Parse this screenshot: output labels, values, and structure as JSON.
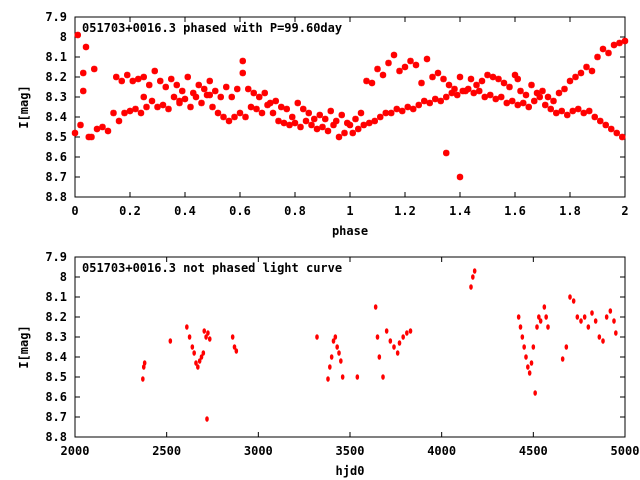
{
  "chart_data": [
    {
      "type": "scatter",
      "title": "051703+0016.3 phased with P=99.60day",
      "xlabel": "phase",
      "ylabel": "I[mag]",
      "xlim": [
        0,
        2
      ],
      "ylim": [
        8.8,
        7.9
      ],
      "y_inverted": true,
      "x_ticks": [
        "0",
        "0.2",
        "0.4",
        "0.6",
        "0.8",
        "1",
        "1.2",
        "1.4",
        "1.6",
        "1.8",
        "2"
      ],
      "y_ticks": [
        "7.9",
        "8",
        "8.1",
        "8.2",
        "8.3",
        "8.4",
        "8.5",
        "8.6",
        "8.7",
        "8.8"
      ],
      "marker": "star",
      "marker_color": "#ff0000",
      "series": [
        {
          "x": [
            0.0,
            0.02,
            0.03,
            0.05,
            0.06,
            0.08,
            0.1,
            0.12,
            0.14,
            0.16,
            0.18,
            0.2,
            0.22,
            0.24,
            0.26,
            0.28,
            0.3,
            0.32,
            0.34,
            0.36,
            0.38,
            0.4,
            0.42,
            0.44,
            0.46,
            0.48,
            0.5,
            0.52,
            0.54,
            0.56,
            0.58,
            0.6,
            0.62,
            0.64,
            0.66,
            0.68,
            0.7,
            0.72,
            0.74,
            0.76,
            0.78,
            0.8,
            0.82,
            0.84,
            0.86,
            0.88,
            0.9,
            0.92,
            0.94,
            0.96,
            0.98,
            0.01,
            0.03,
            0.04,
            0.07,
            0.15,
            0.17,
            0.19,
            0.21,
            0.23,
            0.25,
            0.27,
            0.29,
            0.31,
            0.33,
            0.35,
            0.37,
            0.39,
            0.41,
            0.43,
            0.45,
            0.47,
            0.49,
            0.51,
            0.53,
            0.55,
            0.57,
            0.59,
            0.61,
            0.63,
            0.65,
            0.67,
            0.69,
            0.71,
            0.73,
            0.75,
            0.77,
            0.79,
            0.81,
            0.83,
            0.85,
            0.87,
            0.89,
            0.91,
            0.93,
            0.95,
            0.97,
            0.99,
            0.61,
            0.25,
            0.38,
            0.49
          ],
          "y": [
            8.48,
            8.44,
            8.27,
            8.5,
            8.5,
            8.46,
            8.45,
            8.47,
            8.38,
            8.42,
            8.38,
            8.37,
            8.36,
            8.38,
            8.35,
            8.32,
            8.35,
            8.34,
            8.36,
            8.3,
            8.33,
            8.31,
            8.35,
            8.3,
            8.33,
            8.29,
            8.35,
            8.38,
            8.4,
            8.42,
            8.4,
            8.38,
            8.4,
            8.35,
            8.36,
            8.38,
            8.34,
            8.38,
            8.42,
            8.43,
            8.44,
            8.43,
            8.45,
            8.42,
            8.44,
            8.46,
            8.45,
            8.47,
            8.44,
            8.5,
            8.48,
            7.99,
            8.18,
            8.05,
            8.16,
            8.2,
            8.22,
            8.19,
            8.22,
            8.21,
            8.2,
            8.24,
            8.17,
            8.22,
            8.25,
            8.21,
            8.24,
            8.27,
            8.2,
            8.28,
            8.24,
            8.26,
            8.29,
            8.27,
            8.3,
            8.25,
            8.3,
            8.26,
            8.18,
            8.26,
            8.28,
            8.3,
            8.28,
            8.33,
            8.32,
            8.35,
            8.36,
            8.4,
            8.33,
            8.36,
            8.38,
            8.41,
            8.39,
            8.41,
            8.37,
            8.42,
            8.39,
            8.43,
            8.12,
            8.3,
            8.32,
            8.22
          ]
        },
        {
          "x": [
            1.0,
            1.02,
            1.04,
            1.06,
            1.08,
            1.1,
            1.12,
            1.14,
            1.16,
            1.18,
            1.2,
            1.22,
            1.24,
            1.26,
            1.28,
            1.3,
            1.32,
            1.34,
            1.36,
            1.38,
            1.4,
            1.42,
            1.44,
            1.46,
            1.48,
            1.5,
            1.52,
            1.54,
            1.56,
            1.58,
            1.6,
            1.62,
            1.64,
            1.66,
            1.68,
            1.7,
            1.72,
            1.74,
            1.76,
            1.78,
            1.8,
            1.82,
            1.84,
            1.86,
            1.88,
            1.9,
            1.92,
            1.94,
            1.96,
            1.98,
            2.0,
            1.01,
            1.03,
            1.05,
            1.07,
            1.09,
            1.11,
            1.13,
            1.15,
            1.17,
            1.19,
            1.21,
            1.23,
            1.25,
            1.27,
            1.29,
            1.31,
            1.33,
            1.35,
            1.37,
            1.39,
            1.41,
            1.43,
            1.45,
            1.47,
            1.49,
            1.51,
            1.53,
            1.55,
            1.57,
            1.59,
            1.61,
            1.63,
            1.65,
            1.67,
            1.69,
            1.71,
            1.73,
            1.75,
            1.77,
            1.79,
            1.81,
            1.83,
            1.85,
            1.87,
            1.89,
            1.91,
            1.93,
            1.95,
            1.97,
            1.99,
            1.35,
            1.4,
            1.61
          ],
          "y": [
            8.44,
            8.41,
            8.38,
            8.22,
            8.23,
            8.16,
            8.19,
            8.13,
            8.09,
            8.17,
            8.15,
            8.12,
            8.14,
            8.23,
            8.11,
            8.2,
            8.18,
            8.21,
            8.24,
            8.26,
            8.2,
            8.27,
            8.21,
            8.24,
            8.22,
            8.19,
            8.2,
            8.21,
            8.23,
            8.25,
            8.19,
            8.27,
            8.29,
            8.24,
            8.28,
            8.27,
            8.3,
            8.32,
            8.28,
            8.26,
            8.22,
            8.2,
            8.18,
            8.15,
            8.17,
            8.1,
            8.06,
            8.08,
            8.04,
            8.03,
            8.02,
            8.48,
            8.46,
            8.44,
            8.43,
            8.42,
            8.4,
            8.38,
            8.38,
            8.36,
            8.37,
            8.35,
            8.36,
            8.34,
            8.32,
            8.33,
            8.31,
            8.32,
            8.3,
            8.28,
            8.29,
            8.27,
            8.26,
            8.28,
            8.27,
            8.3,
            8.29,
            8.31,
            8.3,
            8.33,
            8.32,
            8.34,
            8.33,
            8.35,
            8.32,
            8.3,
            8.34,
            8.36,
            8.38,
            8.37,
            8.39,
            8.37,
            8.36,
            8.38,
            8.37,
            8.4,
            8.42,
            8.44,
            8.46,
            8.48,
            8.5,
            8.58,
            8.7,
            8.21
          ]
        }
      ]
    },
    {
      "type": "scatter",
      "title": "051703+0016.3 not phased light curve",
      "xlabel": "hjd0",
      "ylabel": "I[mag]",
      "xlim": [
        2000,
        5000
      ],
      "ylim": [
        8.8,
        7.9
      ],
      "y_inverted": true,
      "x_ticks": [
        "2000",
        "2500",
        "3000",
        "3500",
        "4000",
        "4500",
        "5000"
      ],
      "y_ticks": [
        "7.9",
        "8",
        "8.1",
        "8.2",
        "8.3",
        "8.4",
        "8.5",
        "8.6",
        "8.7",
        "8.8"
      ],
      "marker": "diamond",
      "marker_color": "#ff0000",
      "series": [
        {
          "x": [
            2370,
            2375,
            2380,
            2520,
            2610,
            2625,
            2640,
            2650,
            2660,
            2670,
            2680,
            2690,
            2700,
            2705,
            2715,
            2725,
            2735,
            2860,
            2870,
            2880,
            3320,
            3380,
            3390,
            3400,
            3410,
            3420,
            3430,
            3440,
            3450,
            3460,
            3540,
            3640,
            3650,
            3660,
            3680,
            3700,
            3720,
            3740,
            3760,
            3770,
            3790,
            3810,
            3830,
            4160,
            4170,
            4180,
            4420,
            4430,
            4440,
            4450,
            4460,
            4470,
            4480,
            4490,
            4500,
            4520,
            4530,
            4540,
            4560,
            4570,
            4580,
            4660,
            4680,
            4700,
            4720,
            4740,
            4760,
            4780,
            4800,
            4820,
            4840,
            4860,
            4880,
            4900,
            4920,
            4940,
            4950,
            2720,
            4510
          ],
          "y": [
            8.51,
            8.45,
            8.43,
            8.32,
            8.25,
            8.3,
            8.35,
            8.38,
            8.43,
            8.45,
            8.42,
            8.4,
            8.38,
            8.27,
            8.3,
            8.28,
            8.31,
            8.3,
            8.35,
            8.37,
            8.3,
            8.51,
            8.45,
            8.4,
            8.32,
            8.3,
            8.35,
            8.38,
            8.42,
            8.5,
            8.5,
            8.15,
            8.3,
            8.4,
            8.5,
            8.27,
            8.32,
            8.35,
            8.38,
            8.33,
            8.3,
            8.28,
            8.27,
            8.05,
            8.0,
            7.97,
            8.2,
            8.25,
            8.3,
            8.35,
            8.4,
            8.45,
            8.48,
            8.43,
            8.35,
            8.25,
            8.2,
            8.22,
            8.15,
            8.2,
            8.25,
            8.41,
            8.35,
            8.1,
            8.12,
            8.2,
            8.22,
            8.2,
            8.25,
            8.18,
            8.22,
            8.3,
            8.32,
            8.2,
            8.17,
            8.22,
            8.28,
            8.71,
            8.58
          ]
        }
      ]
    }
  ]
}
